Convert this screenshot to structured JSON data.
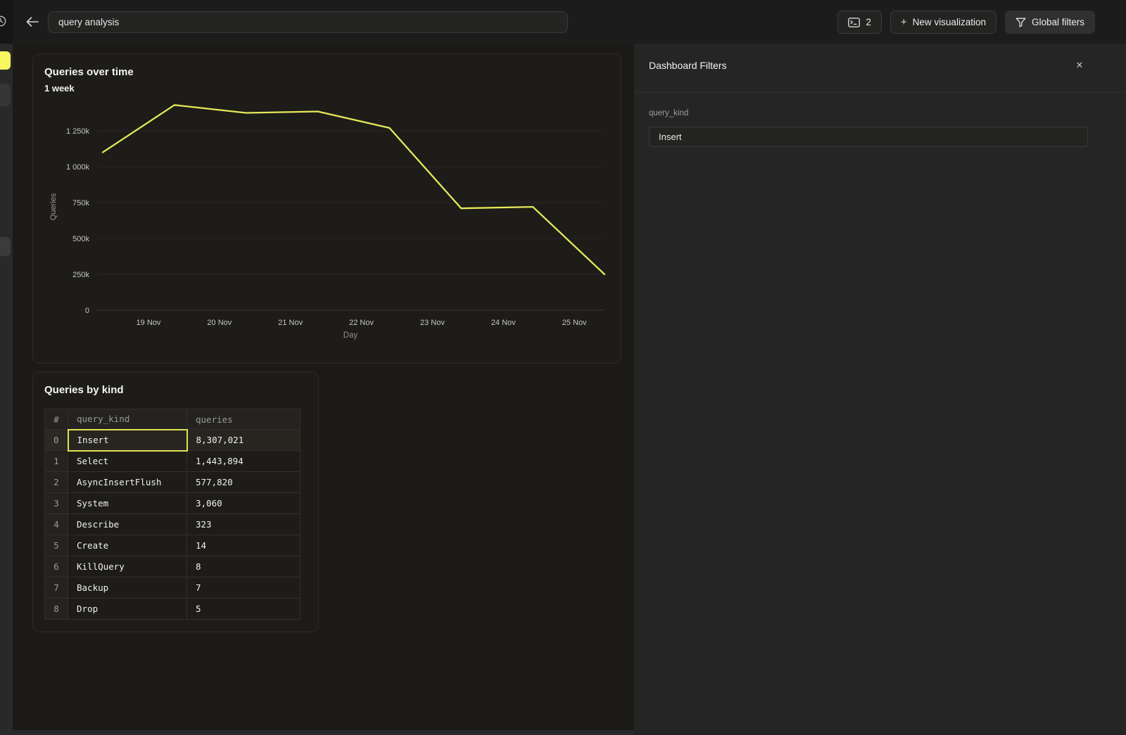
{
  "topbar": {
    "back_icon": "left-arrow",
    "history_icon": "clock",
    "title_input": {
      "value": "query analysis"
    },
    "console_button": {
      "icon": "sql-console",
      "count": "2"
    },
    "new_viz_button": {
      "plus": "+",
      "label": "New visualization"
    },
    "global_filters_button": {
      "icon": "funnel",
      "label": "Global filters"
    }
  },
  "chart_card": {
    "title": "Queries over time",
    "subtitle": "1 week"
  },
  "chart_data": {
    "type": "line",
    "title": "Queries over time",
    "subtitle": "1 week",
    "xlabel": "Day",
    "ylabel": "Queries",
    "x_tick_labels": [
      "19 Nov",
      "20 Nov",
      "21 Nov",
      "22 Nov",
      "23 Nov",
      "24 Nov",
      "25 Nov"
    ],
    "y_ticks": [
      {
        "label": "0",
        "value": 0
      },
      {
        "label": "250k",
        "value": 250000
      },
      {
        "label": "500k",
        "value": 500000
      },
      {
        "label": "750k",
        "value": 750000
      },
      {
        "label": "1 000k",
        "value": 1000000
      },
      {
        "label": "1 250k",
        "value": 1250000
      }
    ],
    "ylim": [
      0,
      1400000
    ],
    "grid": "horizontal",
    "legend": "none",
    "line_color": "#e6e95a",
    "series": [
      {
        "name": "Queries",
        "values": [
          1100000,
          1430000,
          1375000,
          1385000,
          1270000,
          710000,
          720000,
          250000
        ]
      }
    ]
  },
  "table_card": {
    "title": "Queries by kind",
    "columns": [
      "#",
      "query_kind",
      "queries"
    ],
    "rows": [
      {
        "index": "0",
        "query_kind": "Insert",
        "queries": "8,307,021",
        "selected": true
      },
      {
        "index": "1",
        "query_kind": "Select",
        "queries": "1,443,894",
        "selected": false
      },
      {
        "index": "2",
        "query_kind": "AsyncInsertFlush",
        "queries": "577,820",
        "selected": false
      },
      {
        "index": "3",
        "query_kind": "System",
        "queries": "3,060",
        "selected": false
      },
      {
        "index": "4",
        "query_kind": "Describe",
        "queries": "323",
        "selected": false
      },
      {
        "index": "5",
        "query_kind": "Create",
        "queries": "14",
        "selected": false
      },
      {
        "index": "6",
        "query_kind": "KillQuery",
        "queries": "8",
        "selected": false
      },
      {
        "index": "7",
        "query_kind": "Backup",
        "queries": "7",
        "selected": false
      },
      {
        "index": "8",
        "query_kind": "Drop",
        "queries": "5",
        "selected": false
      }
    ]
  },
  "filters_panel": {
    "title": "Dashboard Filters",
    "close_icon": "✕",
    "fields": [
      {
        "label": "query_kind",
        "value": "Insert"
      }
    ]
  },
  "colors": {
    "accent_yellow": "#e6e95a",
    "sidebar_active_yellow": "#f7f75f",
    "selected_cell_border": "#e2e34f"
  }
}
